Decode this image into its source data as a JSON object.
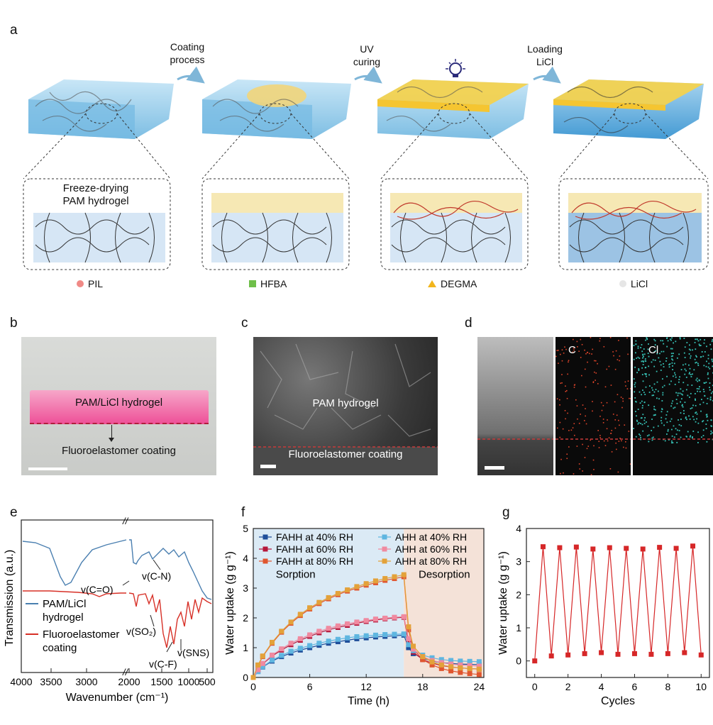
{
  "panel_labels": {
    "a": "a",
    "b": "b",
    "c": "c",
    "d": "d",
    "e": "e",
    "f": "f",
    "g": "g"
  },
  "panel_a": {
    "steps": [
      {
        "line1": "Coating",
        "line2": "process"
      },
      {
        "line1": "UV",
        "line2": "curing"
      },
      {
        "line1": "Loading",
        "line2": "LiCl"
      }
    ],
    "inset_text": {
      "line1": "Freeze-drying",
      "line2": "PAM hydrogel"
    },
    "legend": [
      {
        "label": "PIL",
        "color": "#f08a86",
        "shape": "circle"
      },
      {
        "label": "HFBA",
        "color": "#6fbf4a",
        "shape": "square"
      },
      {
        "label": "DEGMA",
        "color": "#f2b51c",
        "shape": "triangle"
      },
      {
        "label": "LiCl",
        "color": "#e6e6e6",
        "shape": "circle"
      }
    ]
  },
  "panel_b": {
    "top_label": "PAM/LiCl hydrogel",
    "bottom_label": "Fluoroelastomer coating"
  },
  "panel_c": {
    "top_label": "PAM hydrogel",
    "bottom_label": "Fluoroelastomer coating"
  },
  "panel_d": {
    "map1": "C",
    "map2": "Cl"
  },
  "chart_data": [
    {
      "id": "e",
      "type": "line",
      "xlabel": "Wavenumber (cm⁻¹)",
      "ylabel": "Transmission (a.u.)",
      "x_ticks": [
        "4000",
        "3500",
        "3000",
        "2000",
        "1500",
        "1000",
        "500"
      ],
      "axis_break": "//",
      "series": [
        {
          "name": "PAM/LiCl hydrogel",
          "color": "#4a7fb0"
        },
        {
          "name": "Fluoroelastomer coating",
          "color": "#d73027"
        }
      ],
      "legend": {
        "s1_line1": "PAM/LiCl",
        "s1_line2": "hydrogel",
        "s2_line1": "Fluoroelastomer",
        "s2_line2": "coating"
      },
      "annotations": [
        "v(C=O)",
        "v(C-N)",
        "v(SO₂)",
        "v(SNS)",
        "v(C-F)"
      ]
    },
    {
      "id": "f",
      "type": "line",
      "xlabel": "Time (h)",
      "ylabel": "Water uptake (g g⁻¹)",
      "xlim": [
        0,
        24.5
      ],
      "ylim": [
        0,
        5
      ],
      "x_ticks": [
        0,
        6,
        12,
        18,
        24
      ],
      "y_ticks": [
        0,
        1,
        2,
        3,
        4,
        5
      ],
      "regions": [
        {
          "label": "Sorption",
          "from": 0,
          "to": 16,
          "color": "#dbeaf5"
        },
        {
          "label": "Desorption",
          "from": 16,
          "to": 24.5,
          "color": "#f4e2d8"
        }
      ],
      "x": [
        0,
        0.5,
        1,
        2,
        3,
        4,
        5,
        6,
        7,
        8,
        9,
        10,
        11,
        12,
        13,
        14,
        15,
        16,
        16.5,
        17,
        18,
        19,
        20,
        21,
        22,
        23,
        24
      ],
      "series": [
        {
          "name": "FAHH at 40% RH",
          "color": "#1f4e9a",
          "marker": "square",
          "values": [
            0,
            0.2,
            0.35,
            0.55,
            0.7,
            0.82,
            0.92,
            1.0,
            1.08,
            1.15,
            1.2,
            1.25,
            1.3,
            1.33,
            1.36,
            1.38,
            1.4,
            1.42,
            1.0,
            0.8,
            0.65,
            0.55,
            0.5,
            0.47,
            0.45,
            0.44,
            0.43
          ]
        },
        {
          "name": "FAHH at 60% RH",
          "color": "#b5173a",
          "marker": "square",
          "values": [
            0,
            0.25,
            0.45,
            0.72,
            0.92,
            1.1,
            1.25,
            1.38,
            1.5,
            1.6,
            1.68,
            1.75,
            1.82,
            1.88,
            1.93,
            1.97,
            2.0,
            2.02,
            1.2,
            0.85,
            0.6,
            0.48,
            0.4,
            0.35,
            0.32,
            0.3,
            0.28
          ]
        },
        {
          "name": "FAHH at 80% RH",
          "color": "#e0562f",
          "marker": "square",
          "values": [
            0,
            0.4,
            0.7,
            1.15,
            1.52,
            1.82,
            2.08,
            2.3,
            2.48,
            2.64,
            2.78,
            2.9,
            3.0,
            3.1,
            3.18,
            3.26,
            3.32,
            3.38,
            1.6,
            0.95,
            0.6,
            0.42,
            0.3,
            0.22,
            0.17,
            0.13,
            0.1
          ]
        },
        {
          "name": "AHH at 40% RH",
          "color": "#5fb6e0",
          "marker": "square",
          "values": [
            0,
            0.2,
            0.36,
            0.58,
            0.74,
            0.88,
            0.98,
            1.07,
            1.15,
            1.22,
            1.28,
            1.33,
            1.37,
            1.4,
            1.42,
            1.44,
            1.45,
            1.46,
            1.1,
            0.9,
            0.75,
            0.66,
            0.6,
            0.57,
            0.55,
            0.54,
            0.53
          ]
        },
        {
          "name": "AHH at 60% RH",
          "color": "#f08aa0",
          "marker": "square",
          "values": [
            0,
            0.26,
            0.47,
            0.75,
            0.96,
            1.15,
            1.3,
            1.43,
            1.55,
            1.65,
            1.73,
            1.8,
            1.86,
            1.91,
            1.96,
            1.99,
            2.02,
            2.04,
            1.3,
            0.95,
            0.7,
            0.57,
            0.5,
            0.45,
            0.42,
            0.4,
            0.38
          ]
        },
        {
          "name": "AHH at 80% RH",
          "color": "#e3a23a",
          "marker": "square",
          "values": [
            0,
            0.42,
            0.72,
            1.18,
            1.55,
            1.86,
            2.12,
            2.34,
            2.52,
            2.68,
            2.82,
            2.94,
            3.05,
            3.15,
            3.24,
            3.32,
            3.38,
            3.45,
            1.7,
            1.05,
            0.7,
            0.52,
            0.42,
            0.36,
            0.32,
            0.3,
            0.28
          ]
        }
      ]
    },
    {
      "id": "g",
      "type": "line",
      "xlabel": "Cycles",
      "ylabel": "Water uptake (g g⁻¹)",
      "xlim": [
        -0.5,
        10.5
      ],
      "ylim": [
        -0.5,
        4
      ],
      "x_ticks": [
        0,
        2,
        4,
        6,
        8,
        10
      ],
      "y_ticks": [
        0,
        1,
        2,
        3,
        4
      ],
      "series": [
        {
          "name": "cycling",
          "color": "#d62728",
          "marker": "square",
          "x": [
            0,
            0.5,
            1,
            1.5,
            2,
            2.5,
            3,
            3.5,
            4,
            4.5,
            5,
            5.5,
            6,
            6.5,
            7,
            7.5,
            8,
            8.5,
            9,
            9.5,
            10
          ],
          "values": [
            0,
            3.45,
            0.15,
            3.42,
            0.18,
            3.44,
            0.22,
            3.38,
            0.25,
            3.42,
            0.2,
            3.4,
            0.22,
            3.38,
            0.2,
            3.43,
            0.22,
            3.4,
            0.25,
            3.47,
            0.18
          ]
        }
      ]
    }
  ]
}
